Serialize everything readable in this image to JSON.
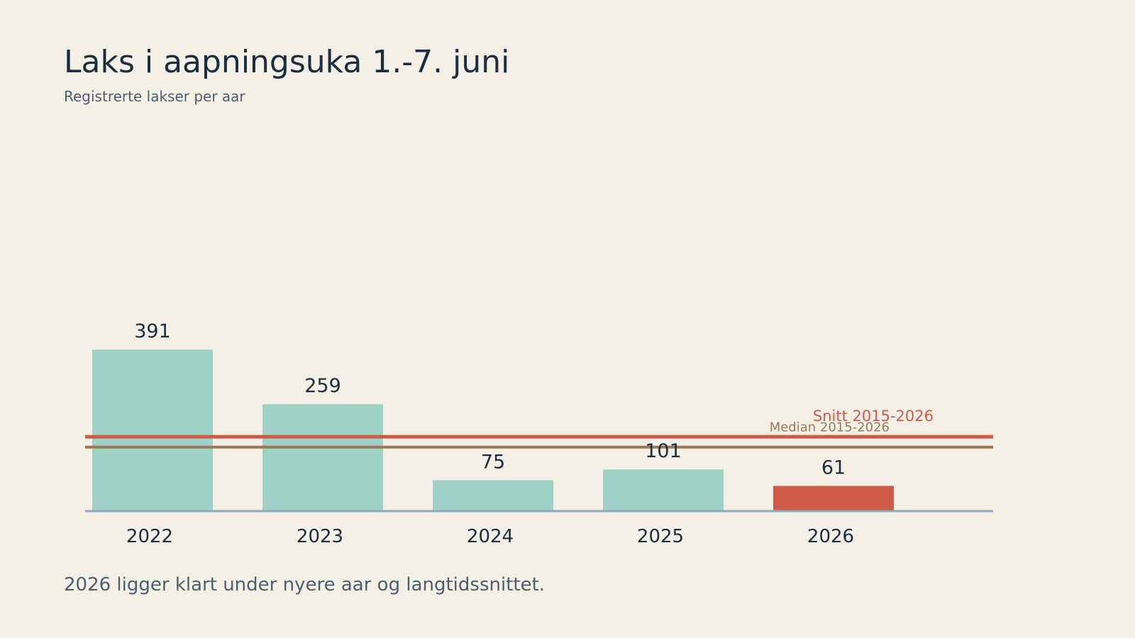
{
  "title": "Laks i aapningsuka 1.-7. juni",
  "subtitle": "Registrerte lakser per aar",
  "footnote": "2026 ligger klart under nyere aar og langtidssnittet.",
  "colors": {
    "background": "#f4f0e6",
    "bar": "#9fd1c6",
    "highlight": "#cf5a48",
    "mean_line": "#cf5a48",
    "median_line": "#9a7a56",
    "axis": "#8fa9bf",
    "text": "#1b2d40"
  },
  "chart_data": {
    "type": "bar",
    "categories": [
      "2022",
      "2023",
      "2024",
      "2025",
      "2026"
    ],
    "values": [
      391,
      259,
      75,
      101,
      61
    ],
    "highlight_category": "2026",
    "ylim": [
      0,
      1250
    ],
    "grid": false,
    "reference_lines": [
      {
        "kind": "mean",
        "label": "Snitt 2015-2026",
        "value": 180
      },
      {
        "kind": "median",
        "label": "Median 2015-2026",
        "value": 155
      }
    ],
    "title": "Laks i aapningsuka 1.-7. juni",
    "subtitle": "Registrerte lakser per aar"
  }
}
